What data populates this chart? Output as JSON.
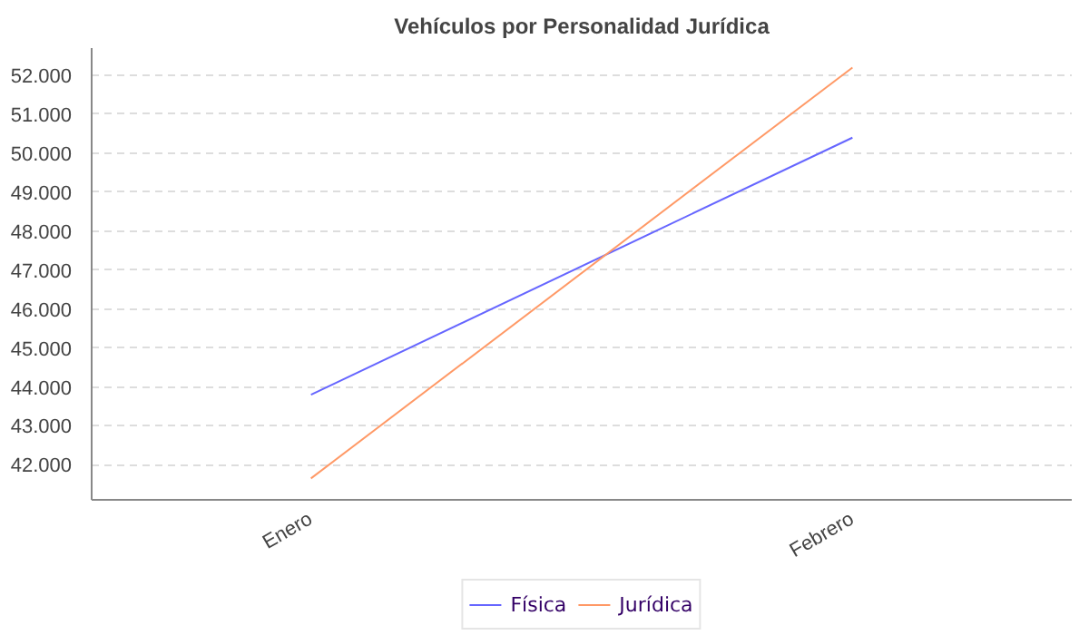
{
  "chart_data": {
    "type": "line",
    "title": "Vehículos por Personalidad Jurídica",
    "categories": [
      "Enero",
      "Febrero"
    ],
    "series": [
      {
        "name": "Física",
        "color": "#6666ff",
        "values": [
          43800,
          50400
        ]
      },
      {
        "name": "Jurídica",
        "color": "#ff9966",
        "values": [
          41650,
          52200
        ]
      }
    ],
    "ylim": [
      41100,
      52700
    ],
    "yticks": [
      {
        "value": 42000,
        "label": "42.000"
      },
      {
        "value": 43000,
        "label": "43.000"
      },
      {
        "value": 44000,
        "label": "44.000"
      },
      {
        "value": 45000,
        "label": "45.000"
      },
      {
        "value": 46000,
        "label": "46.000"
      },
      {
        "value": 47000,
        "label": "47.000"
      },
      {
        "value": 48000,
        "label": "48.000"
      },
      {
        "value": 49000,
        "label": "49.000"
      },
      {
        "value": 50000,
        "label": "50.000"
      },
      {
        "value": 51000,
        "label": "51.000"
      },
      {
        "value": 52000,
        "label": "52.000"
      }
    ],
    "grid": "y",
    "legend": "bottom",
    "marker": "none",
    "line_style": "solid"
  }
}
